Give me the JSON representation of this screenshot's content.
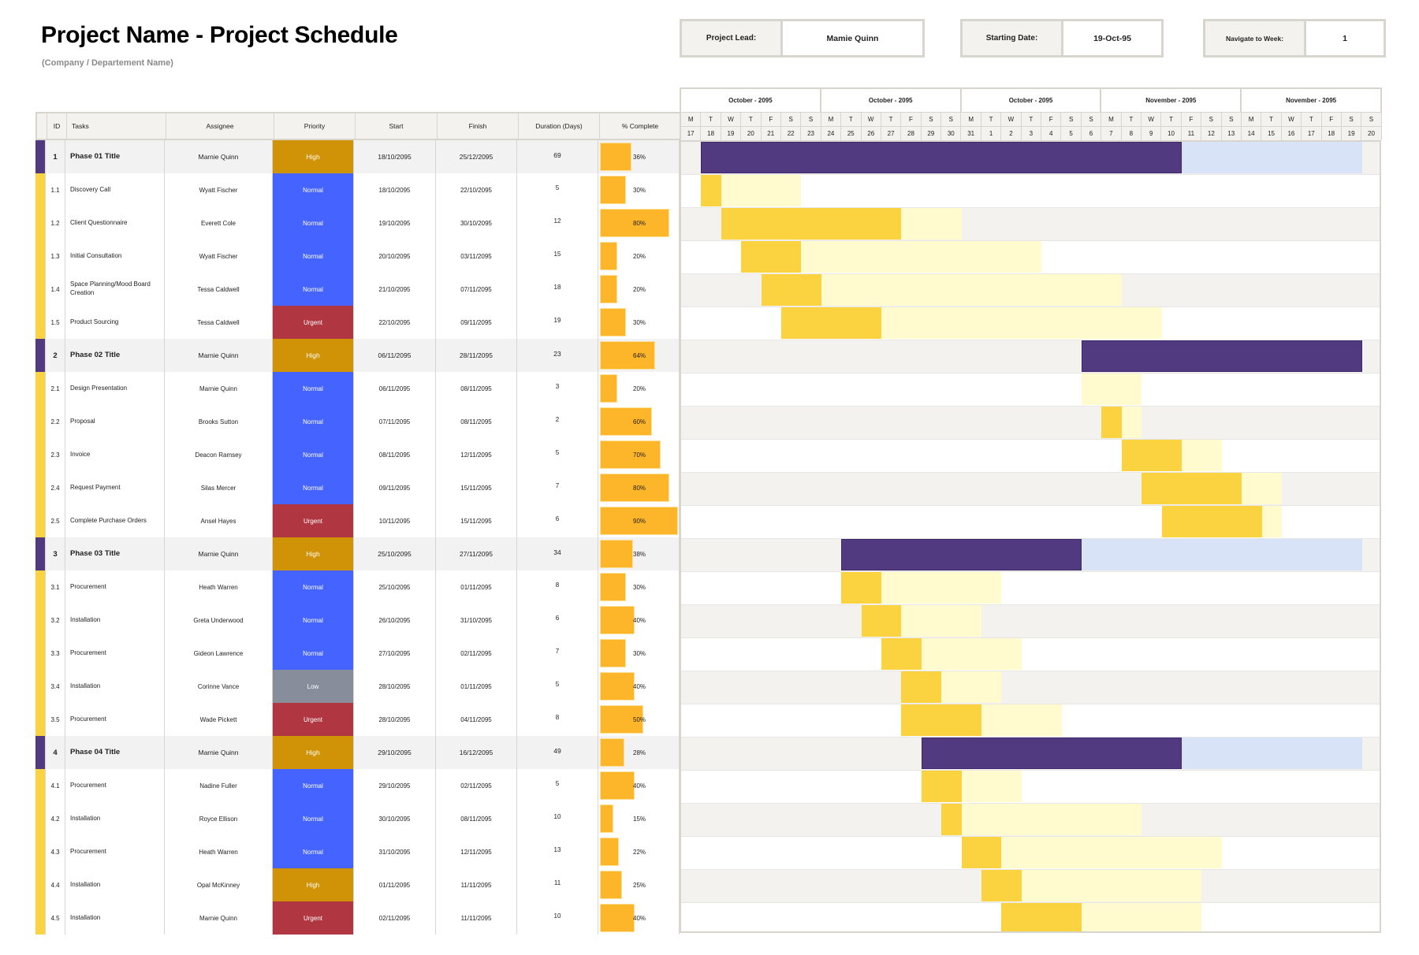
{
  "header": {
    "title": "Project Name - Project Schedule",
    "subtitle": "(Company / Departement Name)",
    "project_lead_label": "Project Lead:",
    "project_lead_value": "Mamie Quinn",
    "starting_date_label": "Starting Date:",
    "starting_date_value": "19-Oct-95",
    "navigate_label": "Navigate to Week:",
    "navigate_value": "1"
  },
  "columns": {
    "id": "ID",
    "tasks": "Tasks",
    "assignee": "Assignee",
    "priority": "Priority",
    "start": "Start",
    "finish": "Finish",
    "duration": "Duration (Days)",
    "complete": "% Complete"
  },
  "colors": {
    "phase_stripe": "#513a80",
    "task_stripe": "#fbd240",
    "priority_high": "#d09206",
    "priority_normal": "#4563fe",
    "priority_urgent": "#b03642",
    "priority_low": "#878d9a",
    "pct_bar": "#fdb52a",
    "phase_done": "#513a80",
    "phase_rest": "#d8e3f8",
    "task_done": "#fbd240",
    "task_rest": "#fffbcf"
  },
  "timeline": {
    "weeks": [
      {
        "label": "October - 2095"
      },
      {
        "label": "October - 2095"
      },
      {
        "label": "October - 2095"
      },
      {
        "label": "November - 2095"
      },
      {
        "label": "November - 2095"
      }
    ],
    "day_letters": [
      "M",
      "T",
      "W",
      "T",
      "F",
      "S",
      "S",
      "M",
      "T",
      "W",
      "T",
      "F",
      "S",
      "S",
      "M",
      "T",
      "W",
      "T",
      "F",
      "S",
      "S",
      "M",
      "T",
      "W",
      "T",
      "F",
      "S",
      "S",
      "M",
      "T",
      "W",
      "T",
      "F",
      "S",
      "S"
    ],
    "day_numbers": [
      "17",
      "18",
      "19",
      "20",
      "21",
      "22",
      "23",
      "24",
      "25",
      "26",
      "27",
      "28",
      "29",
      "30",
      "31",
      "1",
      "2",
      "3",
      "4",
      "5",
      "6",
      "7",
      "8",
      "9",
      "10",
      "11",
      "12",
      "13",
      "14",
      "15",
      "16",
      "17",
      "18",
      "19",
      "20"
    ]
  },
  "rows": [
    {
      "type": "phase",
      "id": "1",
      "task": "Phase 01 Title",
      "assignee": "Marnie Quinn",
      "priority": "High",
      "start": "18/10/2095",
      "finish": "25/12/2095",
      "duration": "69",
      "pct": 36,
      "pct_label": "36%",
      "g_start": 1,
      "g_done": 24,
      "g_total": 33
    },
    {
      "type": "task",
      "id": "1.1",
      "task": "Discovery Call",
      "assignee": "Wyatt Fischer",
      "priority": "Normal",
      "start": "18/10/2095",
      "finish": "22/10/2095",
      "duration": "5",
      "pct": 30,
      "pct_label": "30%",
      "g_start": 1,
      "g_done": 1,
      "g_total": 5
    },
    {
      "type": "task",
      "id": "1.2",
      "task": "Client Questionnaire",
      "assignee": "Everett Cole",
      "priority": "Normal",
      "start": "19/10/2095",
      "finish": "30/10/2095",
      "duration": "12",
      "pct": 80,
      "pct_label": "80%",
      "g_start": 2,
      "g_done": 9,
      "g_total": 12
    },
    {
      "type": "task",
      "id": "1.3",
      "task": "Initial Consultation",
      "assignee": "Wyatt Fischer",
      "priority": "Normal",
      "start": "20/10/2095",
      "finish": "03/11/2095",
      "duration": "15",
      "pct": 20,
      "pct_label": "20%",
      "g_start": 3,
      "g_done": 3,
      "g_total": 15
    },
    {
      "type": "task",
      "id": "1.4",
      "task": "Space Planning/Mood Board Creation",
      "assignee": "Tessa Caldwell",
      "priority": "Normal",
      "start": "21/10/2095",
      "finish": "07/11/2095",
      "duration": "18",
      "pct": 20,
      "pct_label": "20%",
      "g_start": 4,
      "g_done": 3,
      "g_total": 18
    },
    {
      "type": "task",
      "id": "1.5",
      "task": "Product Sourcing",
      "assignee": "Tessa Caldwell",
      "priority": "Urgent",
      "start": "22/10/2095",
      "finish": "09/11/2095",
      "duration": "19",
      "pct": 30,
      "pct_label": "30%",
      "g_start": 5,
      "g_done": 5,
      "g_total": 19
    },
    {
      "type": "phase",
      "id": "2",
      "task": "Phase 02 Title",
      "assignee": "Marnie Quinn",
      "priority": "High",
      "start": "06/11/2095",
      "finish": "28/11/2095",
      "duration": "23",
      "pct": 64,
      "pct_label": "64%",
      "g_start": 20,
      "g_done": 14,
      "g_total": 14
    },
    {
      "type": "task",
      "id": "2.1",
      "task": "Design Presentation",
      "assignee": "Marnie Quinn",
      "priority": "Normal",
      "start": "06/11/2095",
      "finish": "08/11/2095",
      "duration": "3",
      "pct": 20,
      "pct_label": "20%",
      "g_start": 20,
      "g_done": 0,
      "g_total": 3
    },
    {
      "type": "task",
      "id": "2.2",
      "task": "Proposal",
      "assignee": "Brooks Sutton",
      "priority": "Normal",
      "start": "07/11/2095",
      "finish": "08/11/2095",
      "duration": "2",
      "pct": 60,
      "pct_label": "60%",
      "g_start": 21,
      "g_done": 1,
      "g_total": 2
    },
    {
      "type": "task",
      "id": "2.3",
      "task": "Invoice",
      "assignee": "Deacon Ramsey",
      "priority": "Normal",
      "start": "08/11/2095",
      "finish": "12/11/2095",
      "duration": "5",
      "pct": 70,
      "pct_label": "70%",
      "g_start": 22,
      "g_done": 3,
      "g_total": 5
    },
    {
      "type": "task",
      "id": "2.4",
      "task": "Request Payment",
      "assignee": "Silas Mercer",
      "priority": "Normal",
      "start": "09/11/2095",
      "finish": "15/11/2095",
      "duration": "7",
      "pct": 80,
      "pct_label": "80%",
      "g_start": 23,
      "g_done": 5,
      "g_total": 7
    },
    {
      "type": "task",
      "id": "2.5",
      "task": "Complete Purchase Orders",
      "assignee": "Ansel Hayes",
      "priority": "Urgent",
      "start": "10/11/2095",
      "finish": "15/11/2095",
      "duration": "6",
      "pct": 90,
      "pct_label": "90%",
      "g_start": 24,
      "g_done": 5,
      "g_total": 6
    },
    {
      "type": "phase",
      "id": "3",
      "task": "Phase 03 Title",
      "assignee": "Marnie Quinn",
      "priority": "High",
      "start": "25/10/2095",
      "finish": "27/11/2095",
      "duration": "34",
      "pct": 38,
      "pct_label": "38%",
      "g_start": 8,
      "g_done": 12,
      "g_total": 26
    },
    {
      "type": "task",
      "id": "3.1",
      "task": "Procurement",
      "assignee": "Heath Warren",
      "priority": "Normal",
      "start": "25/10/2095",
      "finish": "01/11/2095",
      "duration": "8",
      "pct": 30,
      "pct_label": "30%",
      "g_start": 8,
      "g_done": 2,
      "g_total": 8
    },
    {
      "type": "task",
      "id": "3.2",
      "task": "Installation",
      "assignee": "Greta Underwood",
      "priority": "Normal",
      "start": "26/10/2095",
      "finish": "31/10/2095",
      "duration": "6",
      "pct": 40,
      "pct_label": "40%",
      "g_start": 9,
      "g_done": 2,
      "g_total": 6
    },
    {
      "type": "task",
      "id": "3.3",
      "task": "Procurement",
      "assignee": "Gideon Lawrence",
      "priority": "Normal",
      "start": "27/10/2095",
      "finish": "02/11/2095",
      "duration": "7",
      "pct": 30,
      "pct_label": "30%",
      "g_start": 10,
      "g_done": 2,
      "g_total": 7
    },
    {
      "type": "task",
      "id": "3.4",
      "task": "Installation",
      "assignee": "Corinne Vance",
      "priority": "Low",
      "start": "28/10/2095",
      "finish": "01/11/2095",
      "duration": "5",
      "pct": 40,
      "pct_label": "40%",
      "g_start": 11,
      "g_done": 2,
      "g_total": 5
    },
    {
      "type": "task",
      "id": "3.5",
      "task": "Procurement",
      "assignee": "Wade Pickett",
      "priority": "Urgent",
      "start": "28/10/2095",
      "finish": "04/11/2095",
      "duration": "8",
      "pct": 50,
      "pct_label": "50%",
      "g_start": 11,
      "g_done": 4,
      "g_total": 8
    },
    {
      "type": "phase",
      "id": "4",
      "task": "Phase 04 Title",
      "assignee": "Marnie Quinn",
      "priority": "High",
      "start": "29/10/2095",
      "finish": "16/12/2095",
      "duration": "49",
      "pct": 28,
      "pct_label": "28%",
      "g_start": 12,
      "g_done": 13,
      "g_total": 22
    },
    {
      "type": "task",
      "id": "4.1",
      "task": "Procurement",
      "assignee": "Nadine Fuller",
      "priority": "Normal",
      "start": "29/10/2095",
      "finish": "02/11/2095",
      "duration": "5",
      "pct": 40,
      "pct_label": "40%",
      "g_start": 12,
      "g_done": 2,
      "g_total": 5
    },
    {
      "type": "task",
      "id": "4.2",
      "task": "Installation",
      "assignee": "Royce Ellison",
      "priority": "Normal",
      "start": "30/10/2095",
      "finish": "08/11/2095",
      "duration": "10",
      "pct": 15,
      "pct_label": "15%",
      "g_start": 13,
      "g_done": 1,
      "g_total": 10
    },
    {
      "type": "task",
      "id": "4.3",
      "task": "Procurement",
      "assignee": "Heath Warren",
      "priority": "Normal",
      "start": "31/10/2095",
      "finish": "12/11/2095",
      "duration": "13",
      "pct": 22,
      "pct_label": "22%",
      "g_start": 14,
      "g_done": 2,
      "g_total": 13
    },
    {
      "type": "task",
      "id": "4.4",
      "task": "Installation",
      "assignee": "Opal McKinney",
      "priority": "High",
      "start": "01/11/2095",
      "finish": "11/11/2095",
      "duration": "11",
      "pct": 25,
      "pct_label": "25%",
      "g_start": 15,
      "g_done": 2,
      "g_total": 11
    },
    {
      "type": "task",
      "id": "4.5",
      "task": "Installation",
      "assignee": "Marnie Quinn",
      "priority": "Urgent",
      "start": "02/11/2095",
      "finish": "11/11/2095",
      "duration": "10",
      "pct": 40,
      "pct_label": "40%",
      "g_start": 16,
      "g_done": 4,
      "g_total": 10
    }
  ]
}
